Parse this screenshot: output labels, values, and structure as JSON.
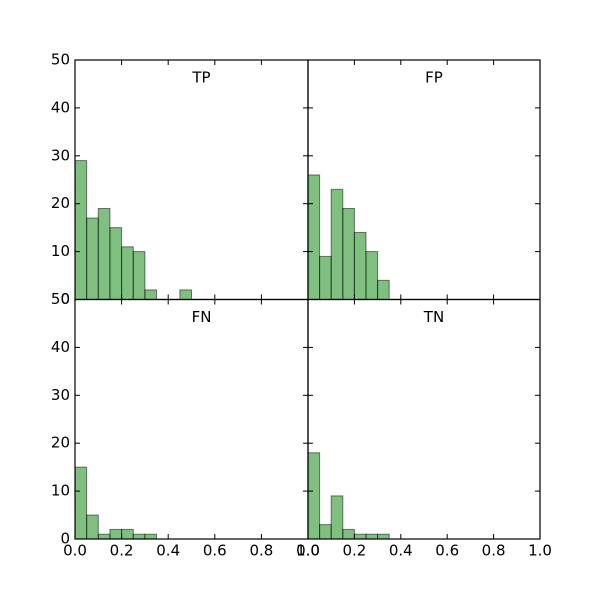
{
  "chart_data": [
    {
      "type": "histogram",
      "title": "TP",
      "color": "#008000",
      "bins": [
        0,
        0.05,
        0.1,
        0.15,
        0.2,
        0.25,
        0.3,
        0.35,
        0.4,
        0.45,
        0.5
      ],
      "values": [
        29,
        17,
        19,
        15,
        11,
        10,
        2,
        0,
        0,
        2
      ],
      "xlim": [
        0,
        1
      ],
      "ylim": [
        0,
        50
      ],
      "xticks": [
        0,
        0.2,
        0.4,
        0.6,
        0.8,
        1
      ],
      "yticks": [
        0,
        10,
        20,
        30,
        40,
        50
      ]
    },
    {
      "type": "histogram",
      "title": "FP",
      "color": "#008000",
      "bins": [
        0,
        0.05,
        0.1,
        0.15,
        0.2,
        0.25,
        0.3,
        0.35
      ],
      "values": [
        26,
        9,
        23,
        19,
        14,
        10,
        4
      ],
      "xlim": [
        0,
        1
      ],
      "ylim": [
        0,
        50
      ],
      "xticks": [
        0,
        0.2,
        0.4,
        0.6,
        0.8,
        1
      ],
      "yticks": [
        0,
        10,
        20,
        30,
        40,
        50
      ]
    },
    {
      "type": "histogram",
      "title": "FN",
      "color": "#008000",
      "bins": [
        0,
        0.05,
        0.1,
        0.15,
        0.2,
        0.25,
        0.3,
        0.35
      ],
      "values": [
        15,
        5,
        1,
        2,
        2,
        1,
        1
      ],
      "xlim": [
        0,
        1
      ],
      "ylim": [
        0,
        50
      ],
      "xticks": [
        {
          "value": 0,
          "label": "0.0"
        },
        {
          "value": 0.2,
          "label": "0.2"
        },
        {
          "value": 0.4,
          "label": "0.4"
        },
        {
          "value": 0.6,
          "label": "0.6"
        },
        {
          "value": 0.8,
          "label": "0.8"
        },
        {
          "value": 1,
          "label": "1.0"
        }
      ],
      "yticks": [
        0,
        10,
        20,
        30,
        40,
        50
      ]
    },
    {
      "type": "histogram",
      "title": "TN",
      "color": "#008000",
      "bins": [
        0,
        0.05,
        0.1,
        0.15,
        0.2,
        0.25,
        0.3,
        0.35
      ],
      "values": [
        18,
        3,
        9,
        2,
        1,
        1,
        1
      ],
      "xlim": [
        0,
        1
      ],
      "ylim": [
        0,
        50
      ],
      "xticks": [
        {
          "value": 0,
          "label": "0.0"
        },
        {
          "value": 0.2,
          "label": "0.2"
        },
        {
          "value": 0.4,
          "label": "0.4"
        },
        {
          "value": 0.6,
          "label": "0.6"
        },
        {
          "value": 0.8,
          "label": "0.8"
        },
        {
          "value": 1,
          "label": "1.0"
        }
      ],
      "yticks": [
        0,
        10,
        20,
        30,
        40,
        50
      ]
    }
  ]
}
